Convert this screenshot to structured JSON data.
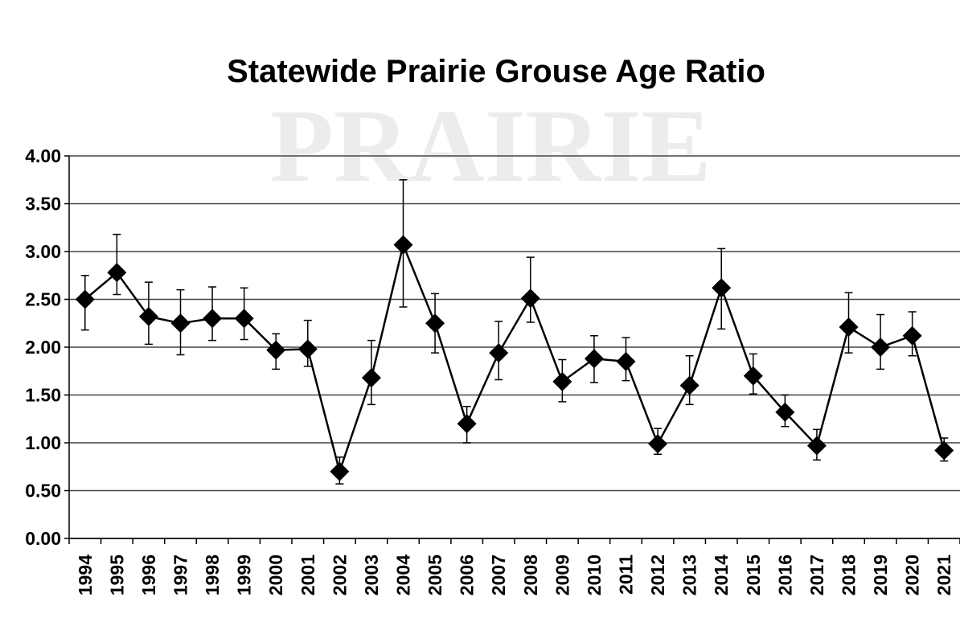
{
  "chart_data": {
    "type": "line",
    "title": "Statewide Prairie Grouse Age Ratio",
    "watermark": "PRAIRIE",
    "categories": [
      "1994",
      "1995",
      "1996",
      "1997",
      "1998",
      "1999",
      "2000",
      "2001",
      "2002",
      "2003",
      "2004",
      "2005",
      "2006",
      "2007",
      "2008",
      "2009",
      "2010",
      "2011",
      "2012",
      "2013",
      "2014",
      "2015",
      "2016",
      "2017",
      "2018",
      "2019",
      "2020",
      "2021"
    ],
    "series": [
      {
        "color": "#000000",
        "values": [
          2.5,
          2.78,
          2.32,
          2.25,
          2.3,
          2.3,
          1.97,
          1.98,
          0.7,
          1.68,
          3.07,
          2.25,
          1.2,
          1.94,
          2.51,
          1.64,
          1.88,
          1.85,
          0.99,
          1.6,
          2.62,
          1.7,
          1.32,
          0.97,
          2.21,
          2.0,
          2.12,
          0.92
        ],
        "upper": [
          2.75,
          3.18,
          2.68,
          2.6,
          2.63,
          2.62,
          2.14,
          2.28,
          0.85,
          2.07,
          3.75,
          2.56,
          1.38,
          2.27,
          2.94,
          1.87,
          2.12,
          2.1,
          1.15,
          1.91,
          3.03,
          1.93,
          1.5,
          1.14,
          2.57,
          2.34,
          2.37,
          1.05
        ],
        "lower": [
          2.18,
          2.55,
          2.03,
          1.92,
          2.07,
          2.08,
          1.77,
          1.8,
          0.57,
          1.4,
          2.42,
          1.94,
          1.0,
          1.66,
          2.26,
          1.43,
          1.63,
          1.65,
          0.88,
          1.4,
          2.19,
          1.51,
          1.17,
          0.82,
          1.94,
          1.77,
          1.91,
          0.81
        ]
      }
    ],
    "ylim": [
      0,
      4
    ],
    "yticks": [
      {
        "value": 0,
        "label": "0.00"
      },
      {
        "value": 0.5,
        "label": "0.50"
      },
      {
        "value": 1,
        "label": "1.00"
      },
      {
        "value": 1.5,
        "label": "1.50"
      },
      {
        "value": 2,
        "label": "2.00"
      },
      {
        "value": 2.5,
        "label": "2.50"
      },
      {
        "value": 3,
        "label": "3.00"
      },
      {
        "value": 3.5,
        "label": "3.50"
      },
      {
        "value": 4,
        "label": "4.00"
      }
    ],
    "grid": true
  }
}
